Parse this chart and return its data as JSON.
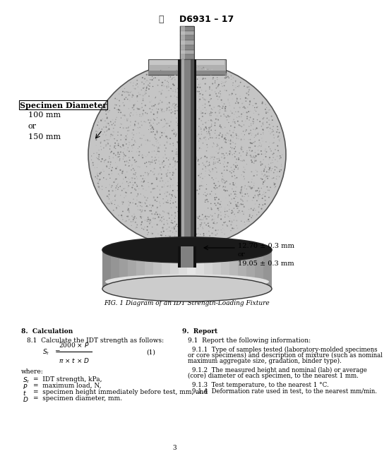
{
  "title": "D6931 – 17",
  "fig_caption": "FIG. 1 Diagram of an IDT Strength-Loading Fixture",
  "specimen_diameter_label": "Specimen Diameter",
  "specimen_diameter_values": "100 mm\nor\n150 mm",
  "dimension_label": "12.70 ± 0.3 mm\nor\n19.05 ± 0.3 mm",
  "section8_title": "8.  Calculation",
  "section8_text1": "8.1  Calculate the IDT strength as follows:",
  "formula_num": "(1)",
  "where_text": "where:",
  "var1_def": "=  IDT strength, kPa,",
  "var2_def": "=  maximum load, N,",
  "var3_def": "=  specimen height immediately before test, mm, and",
  "var4_def": "=  specimen diameter, mm.",
  "section9_title": "9.  Report",
  "section9_text1": "9.1  Report the following information:",
  "s911_l1": "9.1.1  Type of samples tested (laboratory-molded specimens",
  "s911_l2": "or core specimens) and description of mixture (such as nominal",
  "s911_l3": "maximum aggregate size, gradation, binder type).",
  "s912_l1": "9.1.2  The measured height and nominal (lab) or average",
  "s912_l2": "(core) diameter of each specimen, to the nearest 1 mm.",
  "s913": "9.1.3  Test temperature, to the nearest 1 °C.",
  "s914": "9.1.4  Deformation rate used in test, to the nearest mm/min.",
  "page_num": "3",
  "bg_color": "#ffffff"
}
